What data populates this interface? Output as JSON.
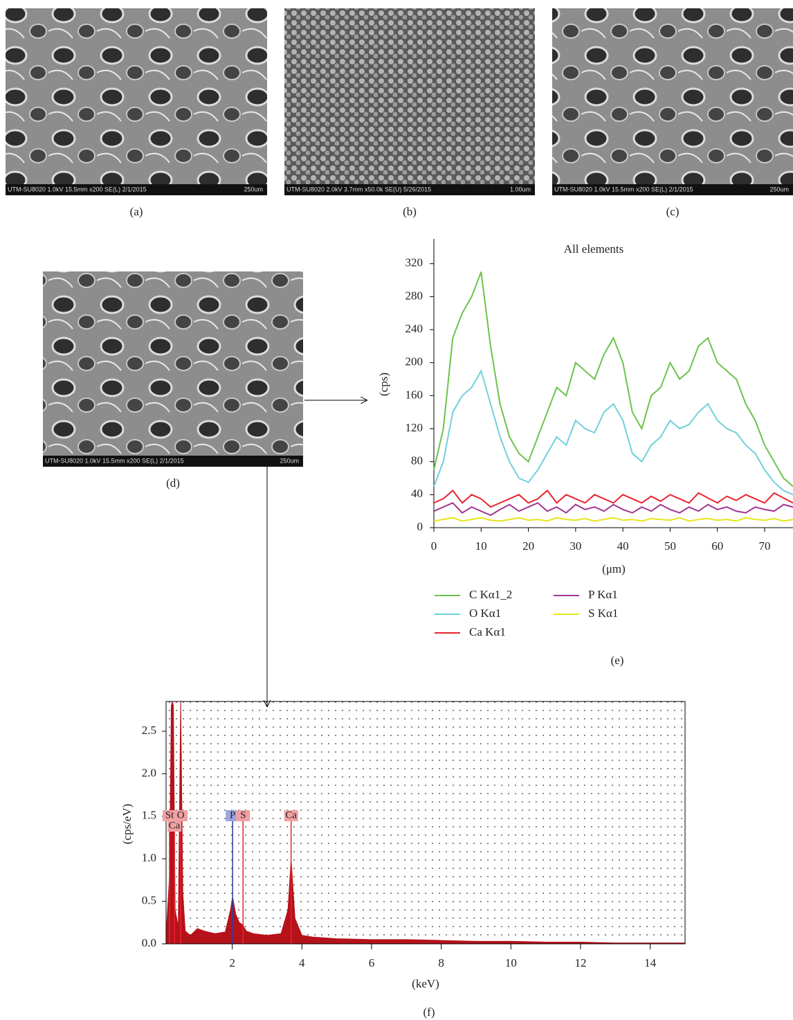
{
  "images": [
    {
      "caption": "(a)",
      "info": "UTM-SU8020 1.0kV 15.5mm x200 SE(L) 2/1/2015",
      "scale": "250um"
    },
    {
      "caption": "(b)",
      "info": "UTM-SU8020 2.0kV 3.7mm x50.0k SE(U) 5/26/2015",
      "scale": "1.00um"
    },
    {
      "caption": "(c)",
      "info": "UTM-SU8020 1.0kV 15.5mm x200 SE(L) 2/1/2015",
      "scale": "250um"
    },
    {
      "caption": "(d)",
      "info": "UTM-SU8020 1.0kV 15.5mm x200 SE(L) 2/1/2015",
      "scale": "250um"
    }
  ],
  "chart_data": [
    {
      "type": "line",
      "title": "All elements",
      "caption": "(e)",
      "x_label": "(μm)",
      "y_label": "(cps)",
      "x": [
        0,
        2,
        4,
        6,
        8,
        10,
        12,
        14,
        16,
        18,
        20,
        22,
        24,
        26,
        28,
        30,
        32,
        34,
        36,
        38,
        40,
        42,
        44,
        46,
        48,
        50,
        52,
        54,
        56,
        58,
        60,
        62,
        64,
        66,
        68,
        70,
        72,
        74,
        76
      ],
      "series": [
        {
          "name": "C Kα1_2",
          "color": "#6cc24a",
          "values": [
            70,
            120,
            230,
            260,
            280,
            310,
            220,
            150,
            110,
            90,
            80,
            110,
            140,
            170,
            160,
            200,
            190,
            180,
            210,
            230,
            200,
            140,
            120,
            160,
            170,
            200,
            180,
            190,
            220,
            230,
            200,
            190,
            180,
            150,
            130,
            100,
            80,
            60,
            50
          ]
        },
        {
          "name": "O Kα1",
          "color": "#6fcfdc",
          "values": [
            50,
            80,
            140,
            160,
            170,
            190,
            150,
            110,
            80,
            60,
            55,
            70,
            90,
            110,
            100,
            130,
            120,
            115,
            140,
            150,
            130,
            90,
            80,
            100,
            110,
            130,
            120,
            125,
            140,
            150,
            130,
            120,
            115,
            100,
            90,
            70,
            55,
            45,
            40
          ]
        },
        {
          "name": "Ca Kα1",
          "color": "#e8232d",
          "values": [
            30,
            35,
            45,
            30,
            40,
            35,
            25,
            30,
            35,
            40,
            30,
            35,
            45,
            30,
            40,
            35,
            30,
            40,
            35,
            30,
            40,
            35,
            30,
            38,
            32,
            40,
            35,
            30,
            42,
            36,
            30,
            38,
            33,
            40,
            35,
            30,
            42,
            36,
            30
          ]
        },
        {
          "name": "P Kα1",
          "color": "#a0358f",
          "values": [
            20,
            25,
            30,
            18,
            25,
            20,
            15,
            22,
            28,
            20,
            25,
            30,
            20,
            25,
            18,
            28,
            22,
            25,
            20,
            28,
            22,
            18,
            25,
            20,
            28,
            22,
            18,
            25,
            20,
            28,
            22,
            25,
            20,
            18,
            25,
            22,
            20,
            28,
            25
          ]
        },
        {
          "name": "S Kα1",
          "color": "#e6e61e",
          "values": [
            8,
            10,
            12,
            8,
            10,
            12,
            9,
            8,
            10,
            12,
            9,
            10,
            8,
            12,
            10,
            9,
            11,
            8,
            10,
            12,
            9,
            10,
            8,
            11,
            10,
            9,
            12,
            8,
            10,
            11,
            9,
            10,
            8,
            12,
            10,
            9,
            11,
            8,
            10
          ]
        }
      ],
      "xlim": [
        0,
        76
      ],
      "ylim": [
        0,
        350
      ],
      "xticks": [
        0,
        10,
        20,
        30,
        40,
        50,
        60,
        70
      ],
      "yticks": [
        0,
        40,
        80,
        120,
        160,
        200,
        240,
        280,
        320
      ]
    },
    {
      "type": "area",
      "caption": "(f)",
      "x_label": "(keV)",
      "y_label": "(cps/eV)",
      "color": "#b5121b",
      "x": [
        0.1,
        0.2,
        0.25,
        0.28,
        0.31,
        0.36,
        0.45,
        0.52,
        0.58,
        0.65,
        0.8,
        1.0,
        1.2,
        1.5,
        1.8,
        1.95,
        2.01,
        2.1,
        2.2,
        2.31,
        2.4,
        2.6,
        3.0,
        3.4,
        3.6,
        3.69,
        3.8,
        4.0,
        4.3,
        5.0,
        6.0,
        7.0,
        8.0,
        9.0,
        10.0,
        11.0,
        12.0,
        13.0,
        14.0,
        15.0
      ],
      "values": [
        0.1,
        0.8,
        2.8,
        2.85,
        2.8,
        0.4,
        0.2,
        2.85,
        0.6,
        0.15,
        0.1,
        0.18,
        0.15,
        0.12,
        0.14,
        0.4,
        0.55,
        0.35,
        0.25,
        0.22,
        0.15,
        0.12,
        0.1,
        0.12,
        0.4,
        1.0,
        0.3,
        0.1,
        0.08,
        0.06,
        0.05,
        0.05,
        0.04,
        0.03,
        0.03,
        0.02,
        0.02,
        0.01,
        0.01,
        0.01
      ],
      "peaks": [
        {
          "label": "St",
          "x": 0.2,
          "color": "#e8232d"
        },
        {
          "label": "O",
          "x": 0.52,
          "color": "#e8232d"
        },
        {
          "label": "Ca",
          "x": 0.34,
          "color": "#e8232d"
        },
        {
          "label": "P",
          "x": 2.01,
          "color": "#2a3fa0"
        },
        {
          "label": "S",
          "x": 2.31,
          "color": "#e8232d"
        },
        {
          "label": "Ca",
          "x": 3.69,
          "color": "#e8232d"
        }
      ],
      "xlim": [
        0.1,
        15
      ],
      "ylim": [
        0,
        2.85
      ],
      "xticks": [
        2,
        4,
        6,
        8,
        10,
        12,
        14
      ],
      "yticks": [
        {
          "value": 0,
          "label": "0.0"
        },
        0.5,
        {
          "value": 1,
          "label": "1.0"
        },
        1.5,
        {
          "value": 2,
          "label": "2.0"
        },
        2.5
      ]
    }
  ]
}
